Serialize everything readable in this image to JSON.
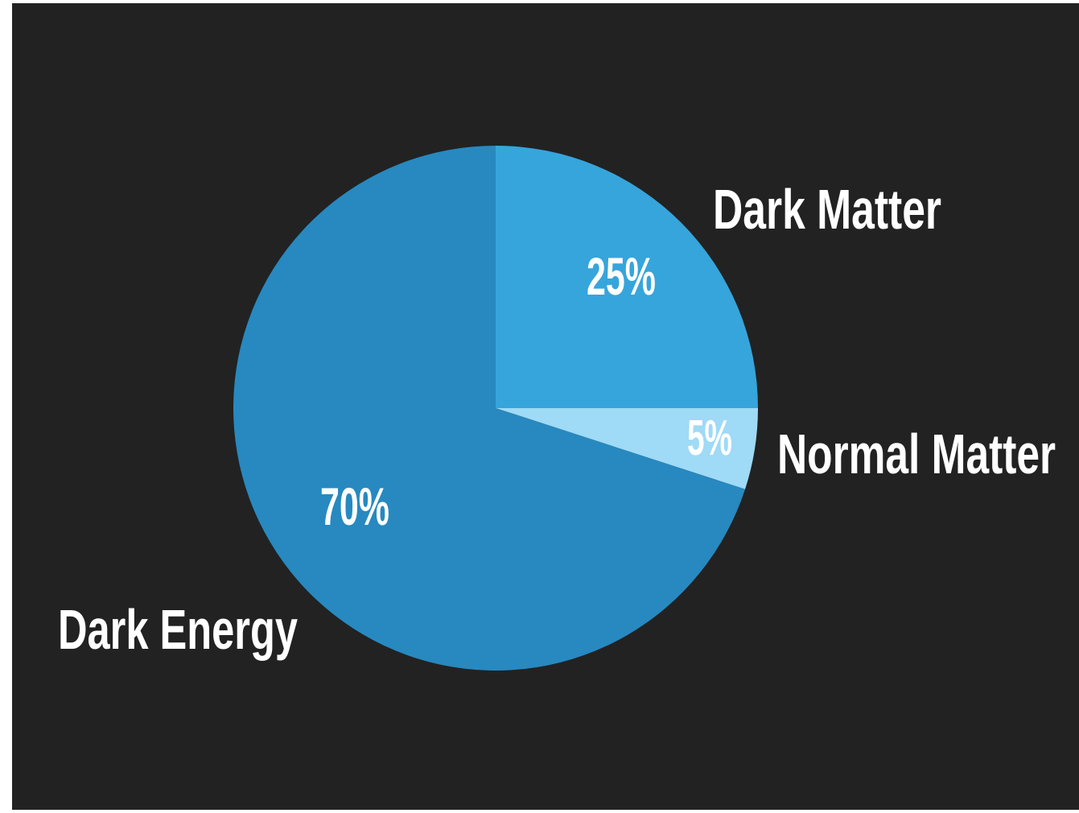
{
  "chart_data": {
    "type": "pie",
    "slices": [
      {
        "name": "Dark Matter",
        "value": 25,
        "value_label": "25%",
        "color": "#36A5DB"
      },
      {
        "name": "Normal Matter",
        "value": 5,
        "value_label": "5%",
        "color": "#9FDAF6"
      },
      {
        "name": "Dark Energy",
        "value": 70,
        "value_label": "70%",
        "color": "#2789C0"
      }
    ],
    "start": "12 o'clock, clockwise",
    "legend": "none",
    "background": "#222222"
  }
}
